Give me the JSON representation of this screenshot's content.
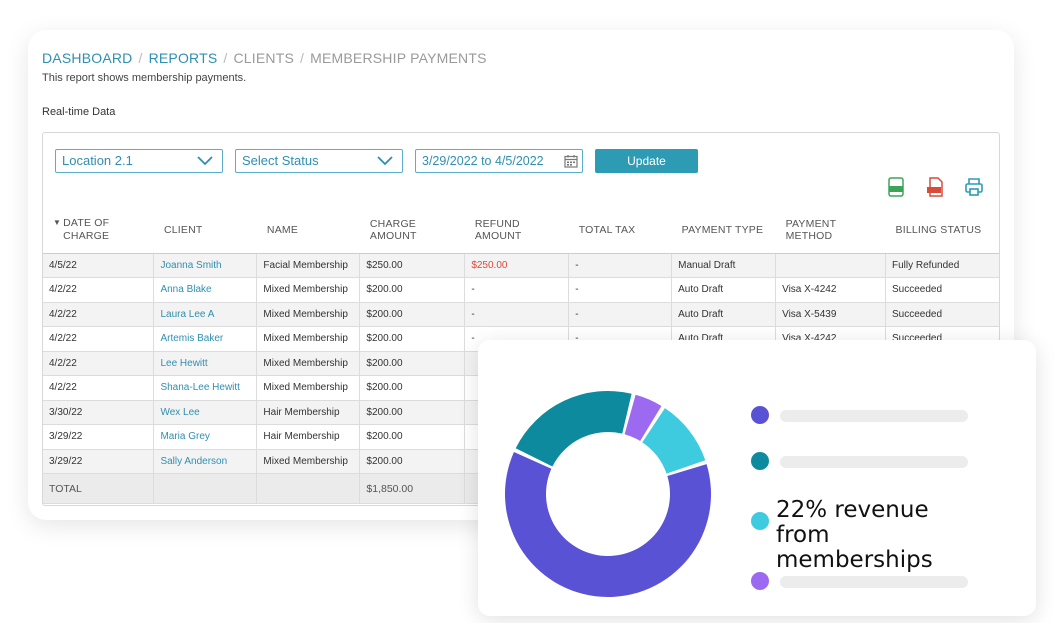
{
  "breadcrumb": {
    "items": [
      "DASHBOARD",
      "REPORTS",
      "CLIENTS",
      "MEMBERSHIP PAYMENTS"
    ],
    "separator": "/"
  },
  "description": "This report shows membership payments.",
  "realtime_label": "Real-time Data",
  "filters": {
    "location": "Location 2.1",
    "status": "Select Status",
    "date_range": "3/29/2022 to 4/5/2022",
    "update_label": "Update"
  },
  "export_icons": [
    "csv-icon",
    "pdf-icon",
    "print-icon"
  ],
  "table": {
    "headers": [
      "DATE OF CHARGE",
      "CLIENT",
      "NAME",
      "CHARGE AMOUNT",
      "REFUND AMOUNT",
      "TOTAL TAX",
      "PAYMENT TYPE",
      "PAYMENT METHOD",
      "BILLING STATUS"
    ],
    "rows": [
      [
        "4/5/22",
        "Joanna Smith",
        "Facial Membership",
        "$250.00",
        "$250.00",
        "-",
        "Manual Draft",
        "",
        "Fully Refunded"
      ],
      [
        "4/2/22",
        "Anna Blake",
        "Mixed Membership",
        "$200.00",
        "-",
        "-",
        "Auto Draft",
        "Visa X-4242",
        "Succeeded"
      ],
      [
        "4/2/22",
        "Laura Lee A",
        "Mixed Membership",
        "$200.00",
        "-",
        "-",
        "Auto Draft",
        "Visa X-5439",
        "Succeeded"
      ],
      [
        "4/2/22",
        "Artemis Baker",
        "Mixed Membership",
        "$200.00",
        "-",
        "-",
        "Auto Draft",
        "Visa X-4242",
        "Succeeded"
      ],
      [
        "4/2/22",
        "Lee Hewitt",
        "Mixed Membership",
        "$200.00",
        "",
        "",
        "",
        "",
        ""
      ],
      [
        "4/2/22",
        "Shana-Lee Hewitt",
        "Mixed Membership",
        "$200.00",
        "",
        "",
        "",
        "",
        ""
      ],
      [
        "3/30/22",
        "Wex Lee",
        "Hair Membership",
        "$200.00",
        "",
        "",
        "",
        "",
        ""
      ],
      [
        "3/29/22",
        "Maria Grey",
        "Hair Membership",
        "$200.00",
        "",
        "",
        "",
        "",
        ""
      ],
      [
        "3/29/22",
        "Sally Anderson",
        "Mixed Membership",
        "$200.00",
        "",
        "",
        "",
        "",
        ""
      ]
    ],
    "total_label": "TOTAL",
    "total_charge": "$1,850.00"
  },
  "overlay": {
    "caption": "22% revenue from memberships",
    "donut": [
      {
        "share": 0.62,
        "color": "#5a52d5"
      },
      {
        "share": 0.22,
        "color": "#0e8a9e"
      },
      {
        "share": 0.05,
        "color": "#9b6af0"
      },
      {
        "share": 0.11,
        "color": "#3ecbe0"
      }
    ],
    "legend_colors": [
      "#5a52d5",
      "#0e8a9e",
      "#3ecbe0",
      "#9b6af0"
    ]
  },
  "colors": {
    "accent": "#2e9bb5",
    "link": "#2f8fb1",
    "refund": "#d84a3a"
  }
}
